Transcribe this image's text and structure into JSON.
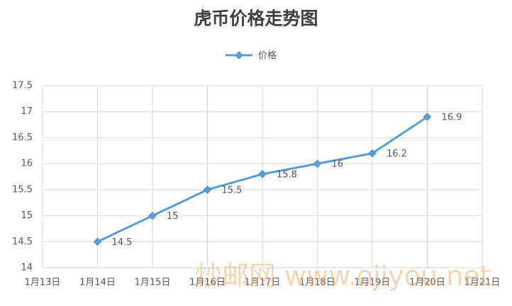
{
  "chart_data": {
    "type": "line",
    "title": "虎币价格走势图",
    "categories": [
      "1月13日",
      "1月14日",
      "1月15日",
      "1月16日",
      "1月17日",
      "1月18日",
      "1月19日",
      "1月20日",
      "1月21日"
    ],
    "series": [
      {
        "name": "价格",
        "color": "#5b9bd5",
        "values": [
          null,
          14.5,
          15,
          15.5,
          15.8,
          16,
          16.2,
          16.9,
          null
        ]
      }
    ],
    "ylim": [
      14,
      17.5
    ],
    "yticks": [
      14,
      14.5,
      15,
      15.5,
      16,
      16.5,
      17,
      17.5
    ],
    "grid": true,
    "legend": "top",
    "data_labels": true,
    "watermark": "炒邮网 www.ojiyou.net"
  }
}
